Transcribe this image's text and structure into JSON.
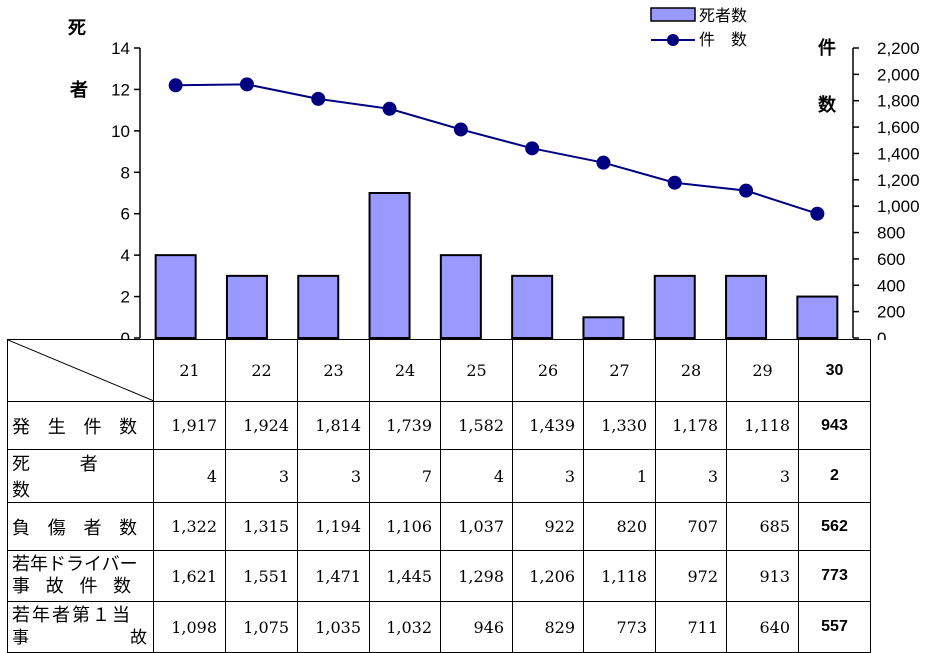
{
  "chart_data": {
    "type": "bar+line",
    "categories": [
      "21",
      "22",
      "23",
      "24",
      "25",
      "26",
      "27",
      "28",
      "29",
      "30"
    ],
    "series": [
      {
        "name": "死者数",
        "type": "bar",
        "axis": "left",
        "color": "#9999ff",
        "values": [
          4,
          3,
          3,
          7,
          4,
          3,
          1,
          3,
          3,
          2
        ]
      },
      {
        "name": "件　数",
        "type": "line",
        "axis": "right",
        "color": "#000080",
        "values": [
          1917,
          1924,
          1814,
          1739,
          1582,
          1439,
          1330,
          1178,
          1118,
          943
        ]
      }
    ],
    "y_left": {
      "label_top": "死",
      "label_mid": "者",
      "ylim": [
        0,
        14
      ],
      "ticks": [
        "0",
        "2",
        "4",
        "6",
        "8",
        "10",
        "12",
        "14"
      ]
    },
    "y_right": {
      "label_top": "件",
      "label_mid": "数",
      "ylim": [
        0,
        2200
      ],
      "ticks": [
        "0",
        "200",
        "400",
        "600",
        "800",
        "1,000",
        "1,200",
        "1,400",
        "1,600",
        "1,800",
        "2,000",
        "2,200"
      ]
    },
    "legend": {
      "placement": "top-right",
      "bar_label": "死者数",
      "line_label": "件　数"
    }
  },
  "table": {
    "years": [
      "21",
      "22",
      "23",
      "24",
      "25",
      "26",
      "27",
      "28",
      "29",
      "30"
    ],
    "rows": [
      {
        "label": "発 生 件 数",
        "values": [
          "1,917",
          "1,924",
          "1,814",
          "1,739",
          "1,582",
          "1,439",
          "1,330",
          "1,178",
          "1,118",
          "943"
        ]
      },
      {
        "label": "死 者 数",
        "values": [
          "4",
          "3",
          "3",
          "7",
          "4",
          "3",
          "1",
          "3",
          "3",
          "2"
        ]
      },
      {
        "label": "負 傷 者 数",
        "values": [
          "1,322",
          "1,315",
          "1,194",
          "1,106",
          "1,037",
          "922",
          "820",
          "707",
          "685",
          "562"
        ]
      },
      {
        "label_line1": "若年ドライバー",
        "label_line2": "事 故 件 数",
        "values": [
          "1,621",
          "1,551",
          "1,471",
          "1,445",
          "1,298",
          "1,206",
          "1,118",
          "972",
          "913",
          "773"
        ]
      },
      {
        "label_line1": "若年者第１当",
        "label_line2_a": "事",
        "label_line2_b": "故",
        "values": [
          "1,098",
          "1,075",
          "1,035",
          "1,032",
          "946",
          "829",
          "773",
          "711",
          "640",
          "557"
        ]
      }
    ]
  }
}
